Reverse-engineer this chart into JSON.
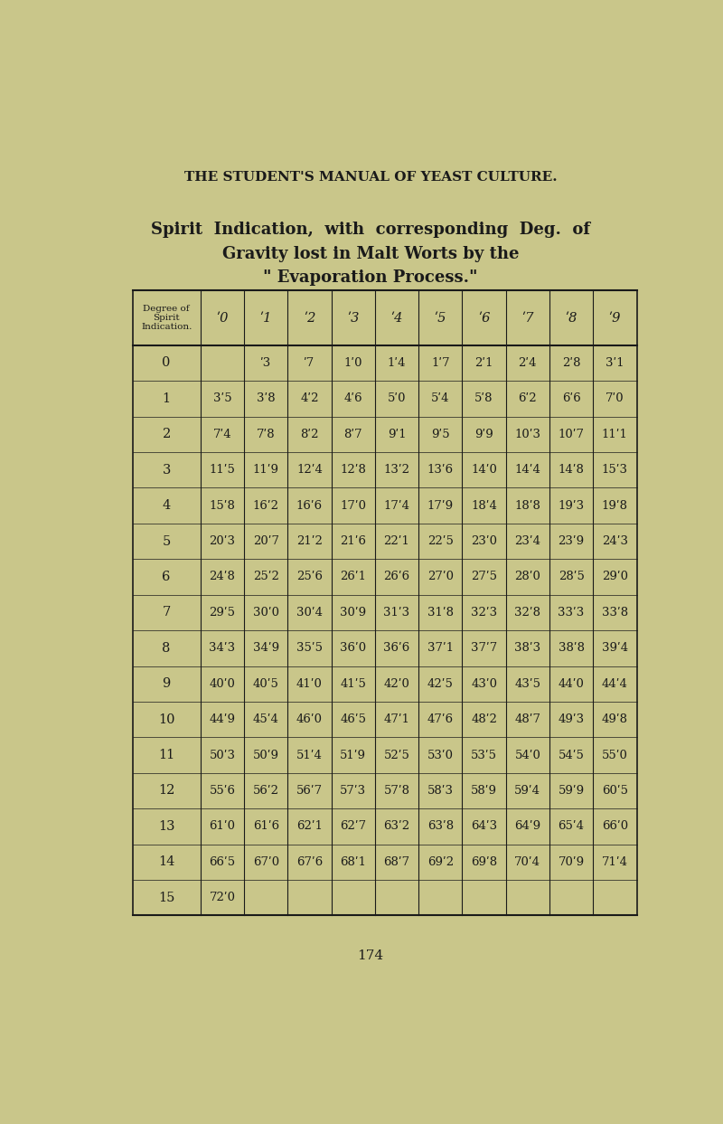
{
  "page_header": "THE STUDENT'S MANUAL OF YEAST CULTURE.",
  "title_line1": "Spirit  Indication,  with  corresponding  Deg.  of",
  "title_line2": "Gravity lost in Malt Worts by the",
  "title_line3": "\" Evaporation Process.\"",
  "col_header_label": "Degree of\nSpirit\nIndication.",
  "col_headers": [
    "ʹ0",
    "ʹ1",
    "ʹ2",
    "ʹ3",
    "ʹ4",
    "ʹ5",
    "ʹ6",
    "ʹ7",
    "ʹ8",
    "ʹ9"
  ],
  "row_labels": [
    "0",
    "1",
    "2",
    "3",
    "4",
    "5",
    "6",
    "7",
    "8",
    "9",
    "10",
    "11",
    "12",
    "13",
    "14",
    "15"
  ],
  "table_data": [
    [
      "",
      "ʹ3",
      "ʹ7",
      "1ʹ0",
      "1ʹ4",
      "1ʹ7",
      "2ʹ1",
      "2ʹ4",
      "2ʹ8",
      "3ʹ1"
    ],
    [
      "3ʹ5",
      "3ʹ8",
      "4ʹ2",
      "4ʹ6",
      "5ʹ0",
      "5ʹ4",
      "5ʹ8",
      "6ʹ2",
      "6ʹ6",
      "7ʹ0"
    ],
    [
      "7ʹ4",
      "7ʹ8",
      "8ʹ2",
      "8ʹ7",
      "9ʹ1",
      "9ʹ5",
      "9ʹ9",
      "10ʹ3",
      "10ʹ7",
      "11ʹ1"
    ],
    [
      "11ʹ5",
      "11ʹ9",
      "12ʹ4",
      "12ʹ8",
      "13ʹ2",
      "13ʹ6",
      "14ʹ0",
      "14ʹ4",
      "14ʹ8",
      "15ʹ3"
    ],
    [
      "15ʹ8",
      "16ʹ2",
      "16ʹ6",
      "17ʹ0",
      "17ʹ4",
      "17ʹ9",
      "18ʹ4",
      "18ʹ8",
      "19ʹ3",
      "19ʹ8"
    ],
    [
      "20ʹ3",
      "20ʹ7",
      "21ʹ2",
      "21ʹ6",
      "22ʹ1",
      "22ʹ5",
      "23ʹ0",
      "23ʹ4",
      "23ʹ9",
      "24ʹ3"
    ],
    [
      "24ʹ8",
      "25ʹ2",
      "25ʹ6",
      "26ʹ1",
      "26ʹ6",
      "27ʹ0",
      "27ʹ5",
      "28ʹ0",
      "28ʹ5",
      "29ʹ0"
    ],
    [
      "29ʹ5",
      "30ʹ0",
      "30ʹ4",
      "30ʹ9",
      "31ʹ3",
      "31ʹ8",
      "32ʹ3",
      "32ʹ8",
      "33ʹ3",
      "33ʹ8"
    ],
    [
      "34ʹ3",
      "34ʹ9",
      "35ʹ5",
      "36ʹ0",
      "36ʹ6",
      "37ʹ1",
      "37ʹ7",
      "38ʹ3",
      "38ʹ8",
      "39ʹ4"
    ],
    [
      "40ʹ0",
      "40ʹ5",
      "41ʹ0",
      "41ʹ5",
      "42ʹ0",
      "42ʹ5",
      "43ʹ0",
      "43ʹ5",
      "44ʹ0",
      "44ʹ4"
    ],
    [
      "44ʹ9",
      "45ʹ4",
      "46ʹ0",
      "46ʹ5",
      "47ʹ1",
      "47ʹ6",
      "48ʹ2",
      "48ʹ7",
      "49ʹ3",
      "49ʹ8"
    ],
    [
      "50ʹ3",
      "50ʹ9",
      "51ʹ4",
      "51ʹ9",
      "52ʹ5",
      "53ʹ0",
      "53ʹ5",
      "54ʹ0",
      "54ʹ5",
      "55ʹ0"
    ],
    [
      "55ʹ6",
      "56ʹ2",
      "56ʹ7",
      "57ʹ3",
      "57ʹ8",
      "58ʹ3",
      "58ʹ9",
      "59ʹ4",
      "59ʹ9",
      "60ʹ5"
    ],
    [
      "61ʹ0",
      "61ʹ6",
      "62ʹ1",
      "62ʹ7",
      "63ʹ2",
      "63ʹ8",
      "64ʹ3",
      "64ʹ9",
      "65ʹ4",
      "66ʹ0"
    ],
    [
      "66ʹ5",
      "67ʹ0",
      "67ʹ6",
      "68ʹ1",
      "68ʹ7",
      "69ʹ2",
      "69ʹ8",
      "70ʹ4",
      "70ʹ9",
      "71ʹ4"
    ],
    [
      "72ʹ0",
      "",
      "",
      "",
      "",
      "",
      "",
      "",
      "",
      ""
    ]
  ],
  "page_number": "174",
  "bg_color": "#c9c68a",
  "text_color": "#1a1a1a",
  "line_color": "#1a1a1a"
}
